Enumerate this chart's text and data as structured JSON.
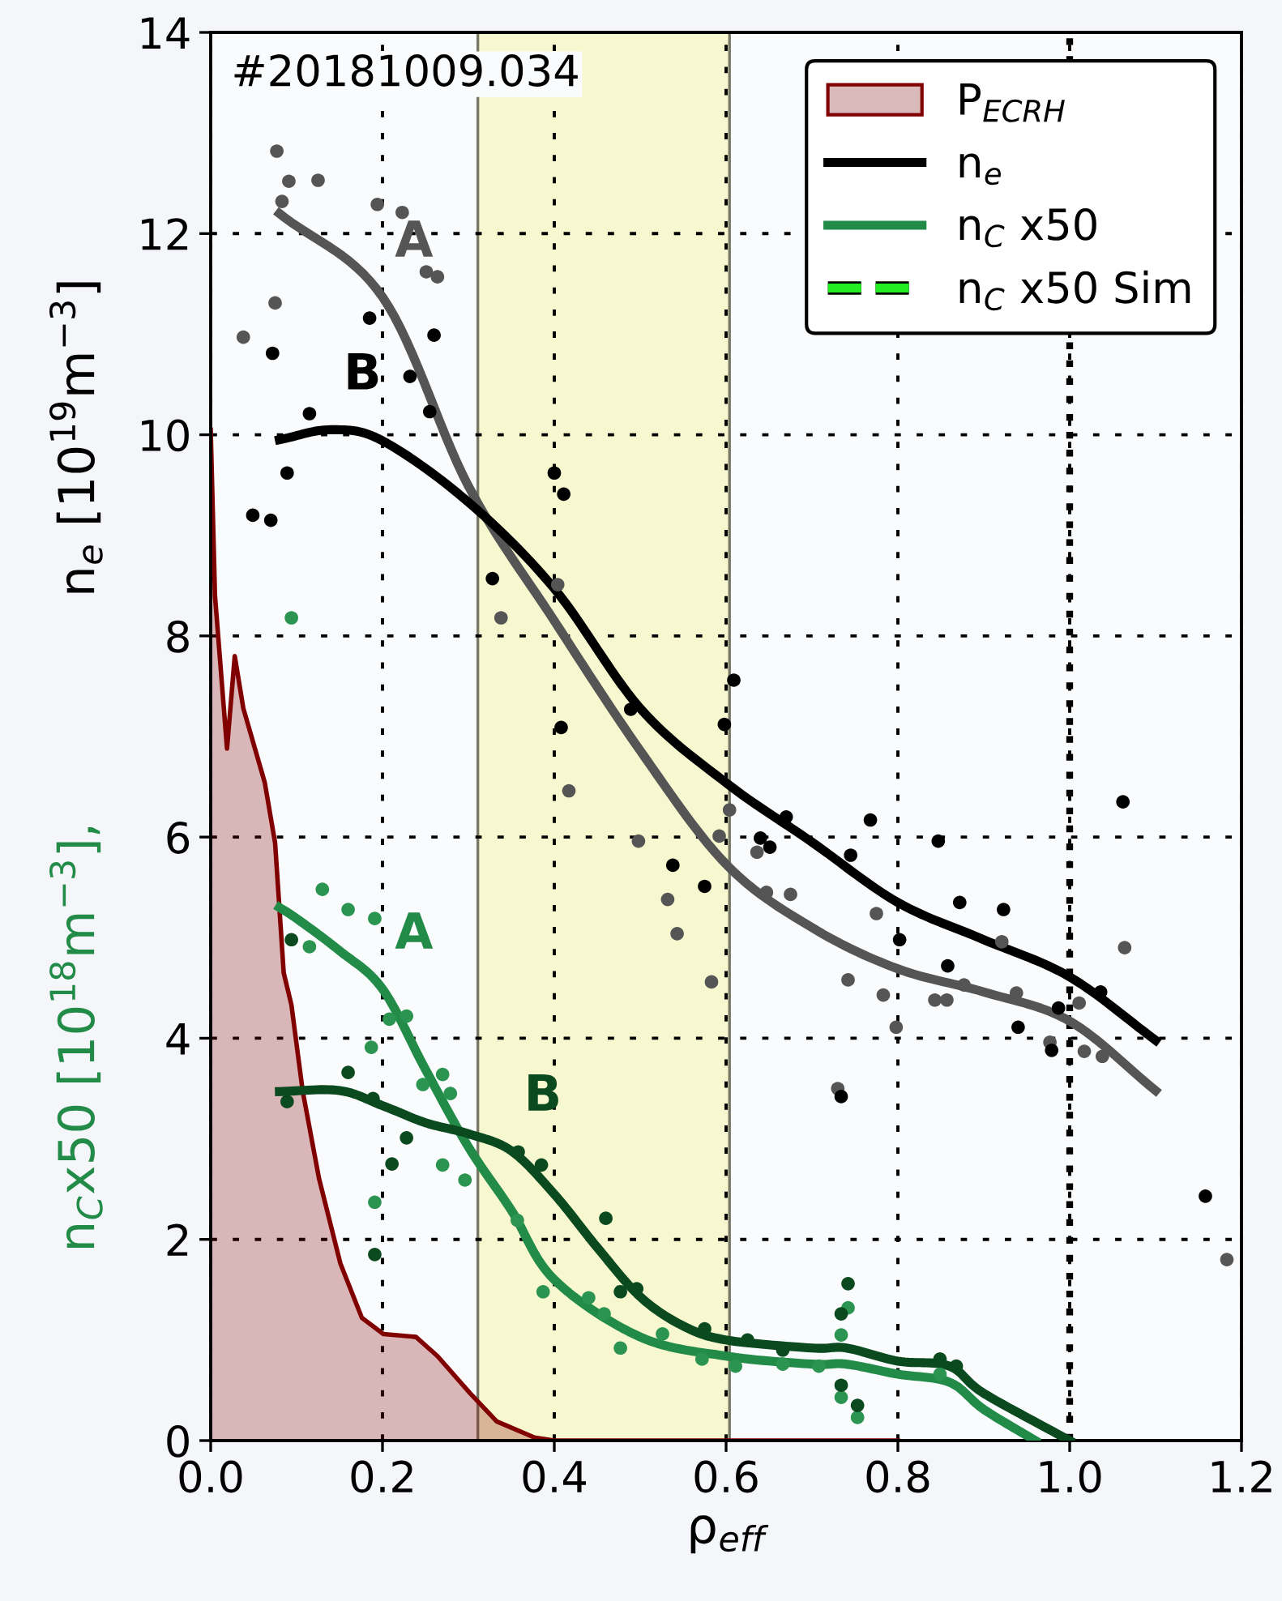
{
  "chart_data": {
    "type": "line",
    "xlabel": "ρ$_{eff}$",
    "ylabel": "n$_{e}$ [10$^{19}$m$^{−3}$]",
    "annotations": [
      "n$_{C}$x50 [10$^{18}$m$^{−3}$],",
      "#20181009.034",
      "A",
      "B",
      "A",
      "B"
    ],
    "xlim": [
      0,
      1.2
    ],
    "ylim": [
      0,
      14
    ],
    "xticks": [
      {
        "value": 0,
        "label": "0.0"
      },
      {
        "value": 0.2,
        "label": "0.2"
      },
      {
        "value": 0.4,
        "label": "0.4"
      },
      {
        "value": 0.6,
        "label": "0.6"
      },
      {
        "value": 0.8,
        "label": "0.8"
      },
      {
        "value": 1.0,
        "label": "1.0"
      },
      {
        "value": 1.2,
        "label": "1.2"
      }
    ],
    "yticks": [
      0,
      2,
      4,
      6,
      8,
      10,
      12,
      14
    ],
    "grid": true,
    "legend": "top right",
    "bands": [
      {
        "axis": "x",
        "from": 0.311,
        "to": 0.604,
        "color": "#f8f8d0"
      }
    ],
    "ref_lines": [
      {
        "axis": "x",
        "value": 1.0,
        "color": "#000000",
        "line_style": "dotted"
      }
    ],
    "series": [
      {
        "type": "area",
        "name": "P$_{ECRH}$",
        "color": "#800000",
        "x": [
          0,
          0.005,
          0.019,
          0.028,
          0.038,
          0.063,
          0.075,
          0.085,
          0.094,
          0.107,
          0.126,
          0.151,
          0.176,
          0.201,
          0.239,
          0.264,
          0.302,
          0.333,
          0.377,
          0.4,
          0.8
        ],
        "values": [
          10.05,
          8.4,
          6.88,
          7.8,
          7.28,
          6.54,
          5.94,
          4.65,
          4.33,
          3.48,
          2.61,
          1.76,
          1.22,
          1.06,
          1.03,
          0.84,
          0.47,
          0.19,
          0.03,
          0,
          0
        ]
      },
      {
        "color": "#555555",
        "marker": "none",
        "x": [
          0.08,
          0.2,
          0.3,
          0.4,
          0.5,
          0.6,
          0.7,
          0.8,
          0.9,
          1.0,
          1.1
        ],
        "values": [
          12.2,
          11.37,
          9.49,
          8.15,
          6.86,
          5.73,
          5.1,
          4.69,
          4.46,
          4.17,
          3.48
        ]
      },
      {
        "name": "n$_{e}$",
        "color": "#000000",
        "marker": "none",
        "x": [
          0.08,
          0.14,
          0.2,
          0.3,
          0.4,
          0.5,
          0.6,
          0.7,
          0.8,
          0.9,
          1.0,
          1.1
        ],
        "values": [
          9.95,
          10.05,
          9.94,
          9.33,
          8.47,
          7.28,
          6.54,
          5.95,
          5.35,
          4.98,
          4.61,
          3.98
        ]
      },
      {
        "name": "n$_{C}$ x50",
        "color": "#228b48",
        "marker": "none",
        "x": [
          0.08,
          0.1,
          0.15,
          0.2,
          0.25,
          0.3,
          0.35,
          0.4,
          0.5,
          0.6,
          0.7,
          0.74,
          0.8,
          0.86,
          0.9,
          0.96
        ],
        "values": [
          5.3,
          5.19,
          4.87,
          4.49,
          3.69,
          2.92,
          2.29,
          1.6,
          1.03,
          0.84,
          0.76,
          0.76,
          0.66,
          0.58,
          0.31,
          0
        ]
      },
      {
        "color": "#0b4a1f",
        "marker": "none",
        "x": [
          0.08,
          0.15,
          0.2,
          0.25,
          0.3,
          0.35,
          0.4,
          0.45,
          0.5,
          0.55,
          0.6,
          0.7,
          0.74,
          0.8,
          0.86,
          0.9,
          1.0
        ],
        "values": [
          3.47,
          3.48,
          3.33,
          3.16,
          3.05,
          2.88,
          2.45,
          1.92,
          1.43,
          1.14,
          1.0,
          0.92,
          0.92,
          0.79,
          0.74,
          0.47,
          0
        ]
      },
      {
        "name": "n$_{C}$ x50 Sim",
        "color": "#22ee22",
        "marker": "none",
        "line_style": "dashed"
      },
      {
        "type": "scatter",
        "color": "#555555",
        "marker": "circle",
        "x": [
          0.077,
          0.091,
          0.083,
          0.125,
          0.194,
          0.223,
          0.251,
          0.264,
          0.075,
          0.038,
          0.338,
          0.404,
          0.417,
          0.498,
          0.532,
          0.543,
          0.583,
          0.604,
          0.592,
          0.636,
          0.647,
          0.675,
          0.775,
          0.742,
          0.783,
          0.798,
          0.843,
          0.857,
          0.877,
          0.921,
          0.938,
          0.977,
          1.011,
          1.017,
          1.038,
          1.064,
          0.73,
          1.183
        ],
        "values": [
          12.82,
          12.52,
          12.32,
          12.53,
          12.29,
          12.21,
          11.62,
          11.57,
          11.31,
          10.97,
          8.18,
          8.51,
          6.46,
          5.96,
          5.38,
          5.04,
          4.56,
          6.27,
          6.01,
          5.85,
          5.45,
          5.43,
          5.24,
          4.58,
          4.43,
          4.11,
          4.38,
          4.38,
          4.53,
          4.96,
          4.45,
          3.96,
          4.35,
          3.87,
          3.82,
          4.9,
          3.5,
          1.8
        ]
      },
      {
        "type": "scatter",
        "color": "#000000",
        "marker": "circle",
        "x": [
          0.185,
          0.26,
          0.072,
          0.232,
          0.255,
          0.115,
          0.089,
          0.049,
          0.07,
          0.4,
          0.411,
          0.328,
          0.489,
          0.408,
          0.609,
          0.598,
          0.67,
          0.64,
          0.651,
          0.768,
          0.745,
          0.847,
          0.872,
          0.923,
          0.802,
          0.858,
          0.94,
          0.987,
          1.036,
          0.979,
          1.062,
          0.734,
          0.538,
          0.575,
          1.158
        ],
        "values": [
          11.16,
          10.99,
          10.81,
          10.58,
          10.23,
          10.21,
          9.62,
          9.2,
          9.15,
          9.62,
          9.41,
          8.57,
          7.27,
          7.09,
          7.56,
          7.12,
          6.2,
          5.99,
          5.9,
          6.17,
          5.82,
          5.96,
          5.35,
          5.28,
          4.98,
          4.72,
          4.11,
          4.3,
          4.46,
          3.88,
          6.35,
          3.42,
          5.72,
          5.51,
          2.43
        ]
      },
      {
        "type": "scatter",
        "color": "#2a9450",
        "marker": "circle",
        "x": [
          0.094,
          0.13,
          0.16,
          0.191,
          0.115,
          0.228,
          0.208,
          0.187,
          0.27,
          0.279,
          0.247,
          0.27,
          0.296,
          0.191,
          0.357,
          0.387,
          0.44,
          0.458,
          0.477,
          0.526,
          0.572,
          0.611,
          0.666,
          0.708,
          0.734,
          0.742,
          0.734,
          0.753,
          0.849
        ],
        "values": [
          8.18,
          5.48,
          5.28,
          5.19,
          4.91,
          4.22,
          4.19,
          3.91,
          3.64,
          3.45,
          3.54,
          2.74,
          2.59,
          2.37,
          2.19,
          1.48,
          1.42,
          1.26,
          0.92,
          1.06,
          0.81,
          0.74,
          0.76,
          0.74,
          1.05,
          1.32,
          0.43,
          0.23,
          0.66
        ]
      },
      {
        "type": "scatter",
        "color": "#0b4a1f",
        "marker": "circle",
        "x": [
          0.094,
          0.089,
          0.16,
          0.189,
          0.228,
          0.211,
          0.191,
          0.358,
          0.385,
          0.46,
          0.477,
          0.496,
          0.575,
          0.625,
          0.666,
          0.734,
          0.742,
          0.734,
          0.753,
          0.849,
          0.868
        ],
        "values": [
          4.98,
          3.37,
          3.66,
          3.4,
          3.01,
          2.75,
          1.85,
          2.87,
          2.74,
          2.21,
          1.48,
          1.51,
          1.11,
          1.0,
          0.9,
          1.26,
          1.56,
          0.55,
          0.35,
          0.81,
          0.74
        ]
      }
    ]
  }
}
